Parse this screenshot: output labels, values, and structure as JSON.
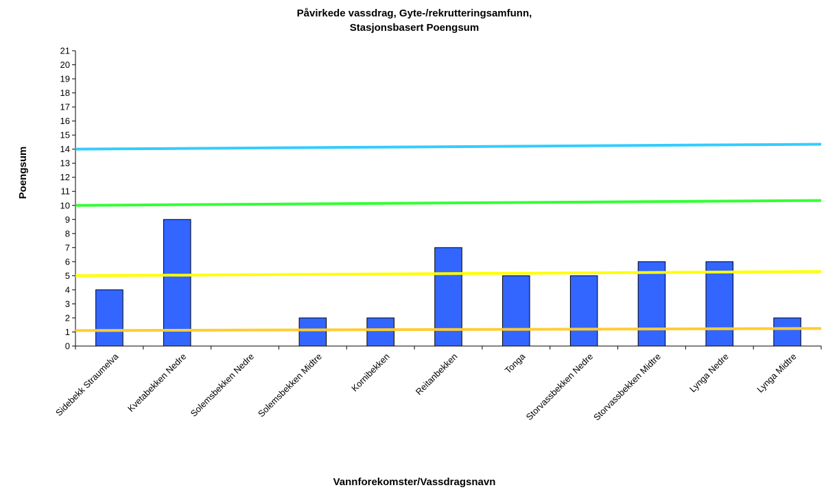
{
  "chart_data": {
    "type": "bar",
    "title": [
      "Påvirkede vassdrag, Gyte-/rekrutteringsamfunn,",
      "Stasjonsbasert Poengsum"
    ],
    "xlabel": "Vannforekomster/Vassdragsnavn",
    "ylabel": "Poengsum",
    "ylim": [
      0,
      21
    ],
    "yticks": [
      "0",
      "1",
      "2",
      "3",
      "4",
      "5",
      "6",
      "7",
      "8",
      "9",
      "10",
      "11",
      "12",
      "13",
      "14",
      "15",
      "16",
      "17",
      "18",
      "19",
      "20",
      "21"
    ],
    "categories": [
      "Sidebekk Straumelva",
      "Kvetabekken Nedre",
      "Solemsbekken Nedre",
      "Solemsbekken Midtre",
      "Kornibekken",
      "Reitanbekken",
      "Tonga",
      "Storvassbekken Nedre",
      "Storvassbekken Midtre",
      "Lynga Nedre",
      "Lynga Midtre"
    ],
    "values": [
      4,
      9,
      0,
      2,
      2,
      7,
      5,
      5,
      6,
      6,
      2
    ],
    "bar_color": "#3366ff",
    "reference_lines": [
      {
        "y_start": 14,
        "y_end": 14.35,
        "color": "#33ccff"
      },
      {
        "y_start": 10,
        "y_end": 10.35,
        "color": "#33ff33"
      },
      {
        "y_start": 5,
        "y_end": 5.3,
        "color": "#ffff00"
      },
      {
        "y_start": 1.1,
        "y_end": 1.25,
        "color": "#ffcc33"
      }
    ],
    "grid": false,
    "legend": "none"
  }
}
